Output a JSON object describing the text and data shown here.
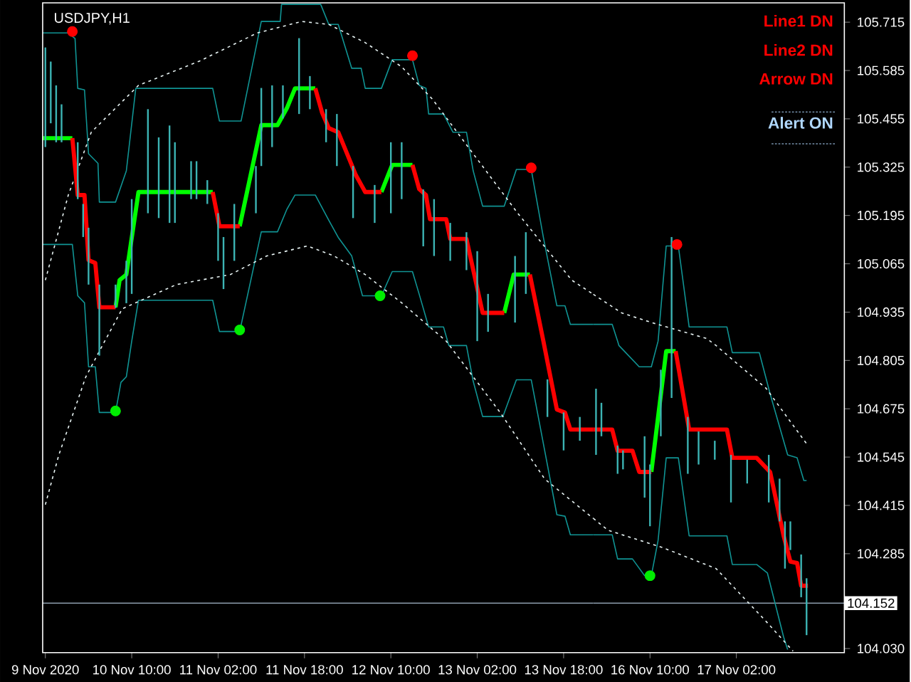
{
  "chart_data": [
    {
      "type": "line",
      "title": "USDJPY,H1",
      "tick_labels": "x",
      "xlim": [
        "2020-11-09T17:30",
        "2020-11-13T23:30"
      ],
      "ylim": [
        104.019,
        105.767
      ],
      "xticks": [
        {
          "value": "2020-11-09T18:00",
          "label": "9 Nov 2020"
        },
        {
          "value": "2020-11-10T10:00",
          "label": "10 Nov 10:00"
        },
        {
          "value": "2020-11-11T02:00",
          "label": "11 Nov 02:00"
        },
        {
          "value": "2020-11-11T18:00",
          "label": "11 Nov 18:00"
        },
        {
          "value": "2020-11-12T10:00",
          "label": "12 Nov 10:00"
        },
        {
          "value": "2020-11-13T02:00",
          "label": "13 Nov 02:00"
        },
        {
          "value": "2020-11-13T18:00",
          "label": "13 Nov 18:00"
        }
      ],
      "ref_lines": [
        {
          "axis": "y",
          "value": 104.152,
          "color": "#8c9cac"
        }
      ],
      "series": [
        {
          "type": "bar",
          "color": "#3cb4b4",
          "x": [
            "2020-11-09T18:00",
            "2020-11-09T19:00",
            "2020-11-09T20:00",
            "2020-11-09T21:00",
            "2020-11-10T00:00",
            "2020-11-10T01:00",
            "2020-11-10T02:00",
            "2020-11-10T04:00",
            "2020-11-10T07:00",
            "2020-11-10T09:00",
            "2020-11-10T10:00",
            "2020-11-10T13:00",
            "2020-11-10T15:00",
            "2020-11-10T17:00",
            "2020-11-10T18:00",
            "2020-11-10T21:00",
            "2020-11-10T22:00",
            "2020-11-11T00:00",
            "2020-11-11T02:00",
            "2020-11-11T03:00",
            "2020-11-11T05:00",
            "2020-11-11T09:00",
            "2020-11-11T10:00",
            "2020-11-11T12:00",
            "2020-11-11T14:00",
            "2020-11-11T17:00",
            "2020-11-11T19:00",
            "2020-11-11T22:00",
            "2020-11-12T00:00",
            "2020-11-12T03:00",
            "2020-11-12T07:00",
            "2020-11-12T10:00",
            "2020-11-12T12:00",
            "2020-11-12T16:00",
            "2020-11-12T18:00",
            "2020-11-12T21:00",
            "2020-11-13T00:00",
            "2020-11-13T02:00",
            "2020-11-13T04:00",
            "2020-11-13T09:00",
            "2020-11-13T11:00",
            "2020-11-13T15:00",
            "2020-11-13T18:00",
            "2020-11-13T21:00"
          ],
          "base": [
            105.379,
            105.443,
            105.392,
            105.392,
            105.239,
            105.137,
            105.009,
            104.818,
            104.946,
            104.959,
            104.984,
            105.201,
            105.188,
            105.175,
            105.175,
            105.239,
            105.239,
            105.226,
            105.073,
            104.997,
            105.073,
            105.201,
            105.328,
            105.379,
            105.456,
            105.468,
            105.481,
            105.392,
            105.328,
            105.188,
            105.175,
            105.201,
            105.239,
            105.112,
            105.086,
            105.073,
            105.048,
            104.857,
            104.882,
            104.907,
            104.984,
            104.653,
            104.563,
            104.589
          ],
          "values": [
            0.268,
            0.166,
            0.153,
            0.102,
            0.153,
            0.089,
            0.153,
            0.191,
            0.063,
            0.114,
            0.255,
            0.28,
            0.217,
            0.262,
            0.217,
            0.102,
            0.102,
            0.064,
            0.128,
            0.14,
            0.153,
            0.127,
            0.21,
            0.166,
            0.089,
            0.204,
            0.089,
            0.089,
            0.14,
            0.14,
            0.102,
            0.191,
            0.153,
            0.153,
            0.153,
            0.102,
            0.102,
            0.242,
            0.102,
            0.179,
            0.166,
            0.101,
            0.102,
            0.064
          ]
        },
        {
          "color": "#109494",
          "marker": "none",
          "line_style": "solid",
          "x": [
            "2020-11-09T17:30",
            "2020-11-09T22:15",
            "2020-11-09T23:30",
            "2020-11-10T00:00",
            "2020-11-10T01:15",
            "2020-11-10T02:00",
            "2020-11-10T03:45",
            "2020-11-10T04:00",
            "2020-11-10T07:00",
            "2020-11-10T09:00",
            "2020-11-10T10:45",
            "2020-11-11T01:00",
            "2020-11-11T02:15",
            "2020-11-11T06:15",
            "2020-11-11T10:00",
            "2020-11-11T13:30",
            "2020-11-11T13:45",
            "2020-11-11T21:00",
            "2020-11-11T22:30",
            "2020-11-12T00:15",
            "2020-11-12T02:45",
            "2020-11-12T04:30",
            "2020-11-12T05:15",
            "2020-11-12T08:15",
            "2020-11-12T10:15",
            "2020-11-12T14:00",
            "2020-11-12T15:15",
            "2020-11-12T16:30",
            "2020-11-12T17:00",
            "2020-11-12T19:45",
            "2020-11-12T21:30",
            "2020-11-13T00:00",
            "2020-11-13T01:15",
            "2020-11-13T03:00",
            "2020-11-13T07:00",
            "2020-11-13T09:15",
            "2020-11-13T12:00",
            "2020-11-13T14:15",
            "2020-11-13T16:45",
            "2020-11-13T18:15",
            "2020-11-13T19:15",
            "2020-11-13T23:30"
          ],
          "values": [
            105.686,
            105.686,
            105.671,
            105.537,
            105.533,
            105.361,
            105.335,
            105.231,
            105.231,
            105.315,
            105.537,
            105.537,
            105.449,
            105.449,
            105.717,
            105.717,
            105.763,
            105.763,
            105.709,
            105.709,
            105.591,
            105.591,
            105.537,
            105.537,
            105.614,
            105.614,
            105.545,
            105.537,
            105.468,
            105.468,
            105.419,
            105.419,
            105.315,
            105.22,
            105.22,
            105.319,
            105.319,
            105.136,
            104.952,
            104.952,
            104.902,
            104.902
          ]
        },
        {
          "color": "#109494",
          "marker": "none",
          "line_style": "solid",
          "x": [
            "2020-11-09T17:30",
            "2020-11-09T23:00",
            "2020-11-10T00:00",
            "2020-11-10T01:15",
            "2020-11-10T02:00",
            "2020-11-10T03:15",
            "2020-11-10T04:00",
            "2020-11-10T07:00",
            "2020-11-10T08:00",
            "2020-11-10T09:00",
            "2020-11-10T10:00",
            "2020-11-10T11:15",
            "2020-11-11T01:00",
            "2020-11-11T02:15",
            "2020-11-11T06:00",
            "2020-11-11T10:00",
            "2020-11-11T13:00",
            "2020-11-11T14:45",
            "2020-11-11T16:15",
            "2020-11-11T20:00",
            "2020-11-11T22:30",
            "2020-11-12T00:15",
            "2020-11-12T02:45",
            "2020-11-12T04:45",
            "2020-11-12T08:15",
            "2020-11-12T10:15",
            "2020-11-12T14:00",
            "2020-11-12T15:15",
            "2020-11-12T17:00",
            "2020-11-12T19:45",
            "2020-11-12T20:45",
            "2020-11-13T00:00",
            "2020-11-13T01:15",
            "2020-11-13T03:00",
            "2020-11-13T06:45",
            "2020-11-13T09:15",
            "2020-11-13T12:00",
            "2020-11-13T16:45",
            "2020-11-13T18:15",
            "2020-11-13T19:15",
            "2020-11-13T23:30"
          ],
          "values": [
            105.117,
            105.117,
            104.979,
            104.96,
            104.788,
            104.788,
            104.665,
            104.665,
            104.746,
            104.761,
            104.857,
            104.967,
            104.967,
            104.883,
            104.883,
            105.151,
            105.151,
            105.212,
            105.25,
            105.25,
            105.182,
            105.136,
            105.086,
            104.979,
            104.979,
            105.044,
            105.044,
            104.983,
            104.895,
            104.895,
            104.845,
            104.845,
            104.749,
            104.654,
            104.654,
            104.753,
            104.753,
            104.39,
            104.386,
            104.336,
            104.336
          ]
        },
        {
          "color": "#e8f4f4",
          "marker": "none",
          "line_style": "dashed",
          "x": [
            "2020-11-09T18:00",
            "2020-11-09T22:15",
            "2020-11-10T02:30",
            "2020-11-10T11:15",
            "2020-11-10T22:30",
            "2020-11-11T09:15",
            "2020-11-11T17:30",
            "2020-11-11T22:30",
            "2020-11-12T05:15",
            "2020-11-12T12:00",
            "2020-11-12T17:45",
            "2020-11-13T01:15",
            "2020-11-13T09:30",
            "2020-11-13T19:30",
            "2020-11-13T23:30"
          ],
          "values": [
            105.021,
            105.25,
            105.419,
            105.545,
            105.61,
            105.686,
            105.717,
            105.709,
            105.66,
            105.595,
            105.507,
            105.361,
            105.201,
            105.021,
            104.983
          ]
        },
        {
          "color": "#e8f4f4",
          "marker": "none",
          "line_style": "dashed",
          "x": [
            "2020-11-09T18:00",
            "2020-11-09T20:30",
            "2020-11-10T01:30",
            "2020-11-10T05:00",
            "2020-11-10T08:15",
            "2020-11-10T18:15",
            "2020-11-11T04:15",
            "2020-11-11T11:00",
            "2020-11-11T18:30",
            "2020-11-11T23:30",
            "2020-11-12T05:15",
            "2020-11-12T12:00",
            "2020-11-12T20:15",
            "2020-11-13T06:15",
            "2020-11-13T14:30",
            "2020-11-13T23:30"
          ],
          "values": [
            104.417,
            104.551,
            104.761,
            104.857,
            104.944,
            105.009,
            105.036,
            105.086,
            105.113,
            105.086,
            105.036,
            104.96,
            104.857,
            104.665,
            104.486,
            104.38
          ]
        },
        {
          "color": "#00ff00",
          "marker": "none",
          "line_style": "solid",
          "x": [
            "2020-11-09T17:30",
            "2020-11-09T23:00",
            "2020-11-10T03:00",
            "2020-11-10T07:00",
            "2020-11-10T07:45",
            "2020-11-10T09:00",
            "2020-11-10T11:15",
            "2020-11-11T01:00",
            "2020-11-11T03:30",
            "2020-11-11T06:00",
            "2020-11-11T10:00",
            "2020-11-11T13:00",
            "2020-11-11T14:45",
            "2020-11-11T16:15",
            "2020-11-11T20:00",
            "2020-11-12T02:00",
            "2020-11-12T08:15",
            "2020-11-12T10:15",
            "2020-11-12T14:00",
            "2020-11-12T22:00",
            "2020-11-13T07:00",
            "2020-11-13T08:45",
            "2020-11-13T11:45"
          ],
          "values": [
            105.403,
            105.403,
            null,
            104.948,
            105.021,
            105.036,
            105.258,
            105.258,
            null,
            105.166,
            105.438,
            105.438,
            105.484,
            105.537,
            105.537,
            null,
            105.258,
            105.331,
            105.331,
            null,
            104.933,
            105.036,
            105.036
          ]
        },
        {
          "color": "#ff0000",
          "marker": "none",
          "line_style": "solid",
          "x": [
            "2020-11-09T23:00",
            "2020-11-10T00:00",
            "2020-11-10T01:15",
            "2020-11-10T02:00",
            "2020-11-10T03:15",
            "2020-11-10T04:00",
            "2020-11-10T07:00",
            "2020-11-10T16:00",
            "2020-11-11T01:00",
            "2020-11-11T02:15",
            "2020-11-11T06:00",
            "2020-11-11T13:00",
            "2020-11-11T20:00",
            "2020-11-11T21:15",
            "2020-11-11T22:30",
            "2020-11-12T00:15",
            "2020-11-12T03:30",
            "2020-11-12T05:15",
            "2020-11-12T08:15",
            "2020-11-12T11:00",
            "2020-11-12T14:00",
            "2020-11-12T15:15",
            "2020-11-12T16:30",
            "2020-11-12T17:15",
            "2020-11-12T20:15",
            "2020-11-12T21:00",
            "2020-11-13T00:00",
            "2020-11-13T03:00",
            "2020-11-13T07:00",
            "2020-11-13T09:00",
            "2020-11-13T11:45",
            "2020-11-13T14:15",
            "2020-11-13T16:45",
            "2020-11-13T18:15",
            "2020-11-13T19:15",
            "2020-11-13T23:30"
          ],
          "values": [
            105.403,
            105.25,
            105.25,
            105.075,
            105.067,
            104.948,
            104.948,
            null,
            105.258,
            105.166,
            105.166,
            null,
            105.537,
            105.472,
            105.43,
            105.419,
            105.304,
            105.258,
            105.258,
            null,
            105.331,
            105.266,
            105.25,
            105.185,
            105.185,
            105.132,
            105.132,
            104.933,
            104.933,
            null,
            105.036,
            104.857,
            104.673,
            104.665,
            104.619,
            104.619
          ]
        },
        {
          "type": "scatter",
          "color": "#ff0000",
          "marker": "circle",
          "x": [
            "2020-11-09T23:00",
            "2020-11-12T14:00",
            "2020-11-13T12:00"
          ],
          "values": [
            105.69,
            105.625,
            105.323
          ]
        },
        {
          "type": "scatter",
          "color": "#00ee00",
          "marker": "circle",
          "x": [
            "2020-11-10T07:00",
            "2020-11-11T06:00",
            "2020-11-12T08:00"
          ],
          "values": [
            104.669,
            104.887,
            104.979
          ]
        }
      ]
    },
    {
      "type": "line",
      "xlim": [
        "2020-11-15T23:30",
        "2020-11-17T22:00"
      ],
      "ylim": [
        104.019,
        105.767
      ],
      "xticks": [
        {
          "value": "2020-11-16T10:00",
          "label": "16 Nov 10:00"
        },
        {
          "value": "2020-11-17T02:00",
          "label": "17 Nov 02:00"
        }
      ],
      "yticks": [
        105.715,
        105.585,
        105.455,
        105.325,
        105.195,
        105.065,
        104.935,
        104.805,
        104.675,
        104.545,
        104.415,
        104.285,
        {
          "value": 104.03,
          "label": "104.030"
        }
      ],
      "ref_lines": [
        {
          "axis": "y",
          "value": 104.152,
          "label": "104.152",
          "color": "#8c9cac"
        }
      ],
      "annotations": [
        "Line1 DN",
        "Line2 DN",
        "Arrow DN",
        "Alert ON"
      ],
      "series": [
        {
          "type": "bar",
          "color": "#3cb4b4",
          "x": [
            "2020-11-16T00:00",
            "2020-11-16T01:00",
            "2020-11-16T04:00",
            "2020-11-16T05:00",
            "2020-11-16T09:00",
            "2020-11-16T10:00",
            "2020-11-16T12:00",
            "2020-11-16T14:00",
            "2020-11-16T17:00",
            "2020-11-16T19:00",
            "2020-11-16T22:00",
            "2020-11-17T01:00",
            "2020-11-17T04:00",
            "2020-11-17T08:00",
            "2020-11-17T10:00",
            "2020-11-17T11:00",
            "2020-11-17T12:00",
            "2020-11-17T14:00",
            "2020-11-17T15:00"
          ],
          "base": [
            104.551,
            104.601,
            104.5,
            104.512,
            104.436,
            104.359,
            104.601,
            104.704,
            104.5,
            104.525,
            104.538,
            104.423,
            104.474,
            104.423,
            104.372,
            104.245,
            104.295,
            104.168,
            104.066
          ],
          "values": [
            0.178,
            0.09,
            0.076,
            0.051,
            0.165,
            0.166,
            0.179,
            0.433,
            0.153,
            0.089,
            0.051,
            0.128,
            0.064,
            0.128,
            0.115,
            0.127,
            0.077,
            0.115,
            0.153
          ]
        },
        {
          "color": "#109494",
          "marker": "none",
          "line_style": "solid",
          "x": [
            "2020-11-15T23:30",
            "2020-11-16T03:00",
            "2020-11-16T04:00",
            "2020-11-16T04:15",
            "2020-11-16T08:00",
            "2020-11-16T10:15",
            "2020-11-16T11:30",
            "2020-11-16T13:00",
            "2020-11-16T15:15",
            "2020-11-16T17:15",
            "2020-11-17T00:15",
            "2020-11-17T01:15",
            "2020-11-17T06:15",
            "2020-11-17T08:15",
            "2020-11-17T11:30",
            "2020-11-17T13:15",
            "2020-11-17T14:30",
            "2020-11-17T15:00"
          ],
          "values": [
            104.902,
            104.902,
            104.857,
            104.845,
            104.788,
            104.788,
            104.857,
            105.113,
            105.113,
            104.895,
            104.895,
            104.826,
            104.826,
            104.715,
            104.551,
            104.543,
            104.482,
            104.482
          ]
        },
        {
          "color": "#109494",
          "marker": "none",
          "line_style": "solid",
          "x": [
            "2020-11-15T23:30",
            "2020-11-16T03:00",
            "2020-11-16T04:00",
            "2020-11-16T06:45",
            "2020-11-16T09:00",
            "2020-11-16T10:15",
            "2020-11-16T11:30",
            "2020-11-16T13:00",
            "2020-11-16T15:15",
            "2020-11-16T17:15",
            "2020-11-17T00:15",
            "2020-11-17T01:15",
            "2020-11-17T05:45",
            "2020-11-17T07:45",
            "2020-11-17T10:45",
            "2020-11-17T11:30"
          ],
          "values": [
            104.336,
            104.336,
            104.271,
            104.271,
            104.226,
            104.226,
            104.321,
            104.543,
            104.543,
            104.333,
            104.333,
            104.256,
            104.256,
            104.233,
            104.061,
            104.027
          ]
        },
        {
          "color": "#e8f4f4",
          "marker": "none",
          "line_style": "dashed",
          "x": [
            "2020-11-15T23:30",
            "2020-11-16T04:45",
            "2020-11-16T10:30",
            "2020-11-16T20:30",
            "2020-11-16T22:15",
            "2020-11-17T07:30",
            "2020-11-17T15:00"
          ],
          "values": [
            104.983,
            104.933,
            104.906,
            104.864,
            104.845,
            104.73,
            104.581
          ]
        },
        {
          "color": "#e8f4f4",
          "marker": "none",
          "line_style": "dashed",
          "x": [
            "2020-11-15T23:30",
            "2020-11-16T02:15",
            "2020-11-16T12:15",
            "2020-11-16T22:15",
            "2020-11-17T07:30",
            "2020-11-17T12:30"
          ],
          "values": [
            104.38,
            104.348,
            104.302,
            104.245,
            104.103,
            104.023
          ]
        },
        {
          "color": "#00ff00",
          "marker": "none",
          "line_style": "solid",
          "x": [
            "2020-11-16T10:15",
            "2020-11-16T13:00",
            "2020-11-16T14:45"
          ],
          "values": [
            104.505,
            104.83,
            104.83
          ]
        },
        {
          "color": "#ff0000",
          "marker": "none",
          "line_style": "solid",
          "x": [
            "2020-11-15T23:30",
            "2020-11-16T03:00",
            "2020-11-16T04:00",
            "2020-11-16T06:45",
            "2020-11-16T08:00",
            "2020-11-16T10:15",
            "2020-11-16T12:00",
            "2020-11-16T14:45",
            "2020-11-16T17:15",
            "2020-11-17T00:15",
            "2020-11-17T01:15",
            "2020-11-17T05:45",
            "2020-11-17T08:15",
            "2020-11-17T10:45",
            "2020-11-17T12:00",
            "2020-11-17T13:15",
            "2020-11-17T14:00",
            "2020-11-17T15:15"
          ],
          "values": [
            104.619,
            104.619,
            104.562,
            104.562,
            104.505,
            104.505,
            null,
            104.83,
            104.619,
            104.619,
            104.543,
            104.543,
            104.505,
            104.333,
            104.264,
            104.26,
            104.199,
            104.199
          ]
        },
        {
          "type": "scatter",
          "color": "#ff0000",
          "marker": "circle",
          "x": [
            "2020-11-16T15:00"
          ],
          "values": [
            105.117
          ]
        },
        {
          "type": "scatter",
          "color": "#00ee00",
          "marker": "circle",
          "x": [
            "2020-11-16T10:00"
          ],
          "values": [
            104.226
          ]
        }
      ]
    }
  ]
}
